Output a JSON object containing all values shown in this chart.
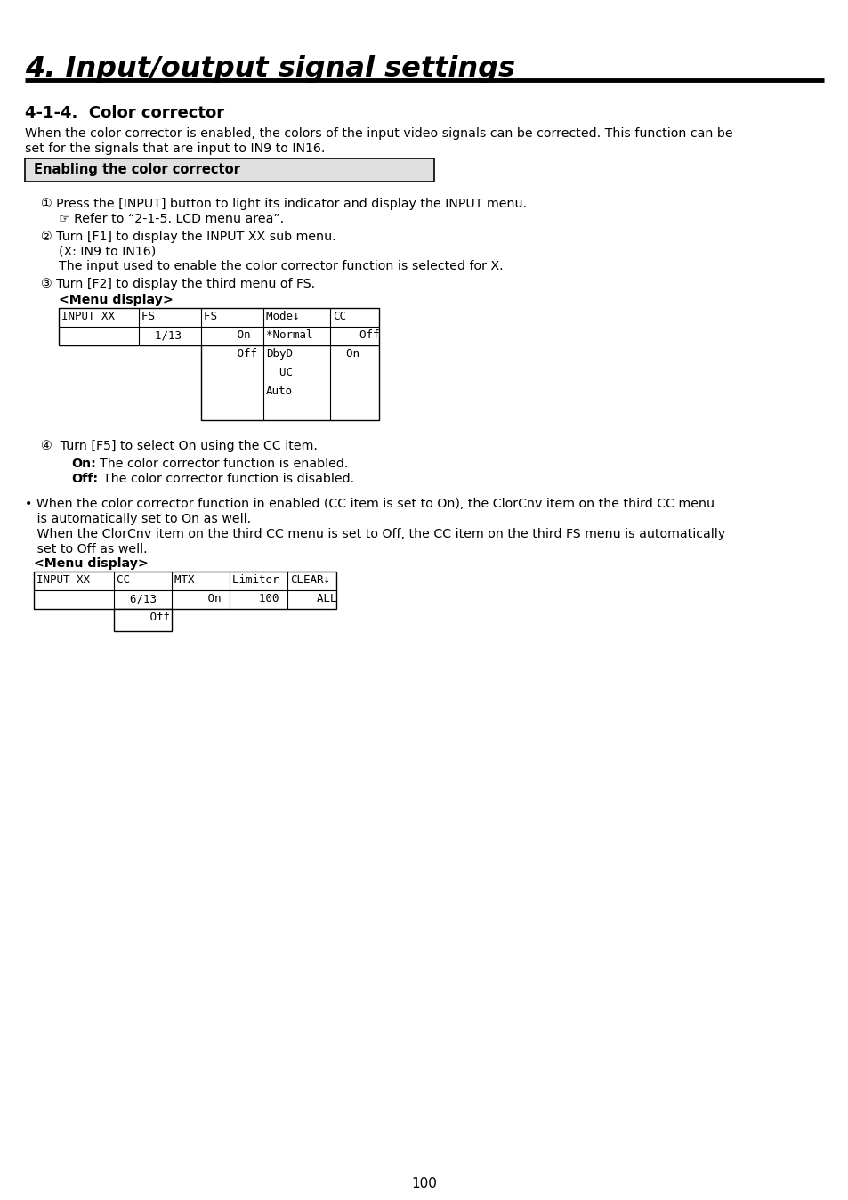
{
  "page_bg": "#ffffff",
  "page_num": "100",
  "chapter_title": "4. Input/output signal settings",
  "section_title": "4-1-4.  Color corrector",
  "intro_line1": "When the color corrector is enabled, the colors of the input video signals can be corrected. This function can be",
  "intro_line2": "set for the signals that are input to IN9 to IN16.",
  "box_label": "Enabling the color corrector",
  "step1_main": "① Press the [INPUT] button to light its indicator and display the INPUT menu.",
  "step1_sub": "☞ Refer to “2-1-5. LCD menu area”.",
  "step2_main": "② Turn [F1] to display the INPUT XX sub menu.",
  "step2_sub1": "(X: IN9 to IN16)",
  "step2_sub2": "The input used to enable the color corrector function is selected for X.",
  "step3_main": "③ Turn [F2] to display the third menu of FS.",
  "menu_display_label": "<Menu display>",
  "step4_main": "④  Turn [F5] to select On using the CC item.",
  "step4_on_label": "On:",
  "step4_on_text": "  The color corrector function is enabled.",
  "step4_off_label": "Off:",
  "step4_off_text": "  The color corrector function is disabled.",
  "bullet_line1": "• When the color corrector function in enabled (CC item is set to On), the ClorCnv item on the third CC menu",
  "bullet_line2": "   is automatically set to On as well.",
  "bullet_line3": "   When the ClorCnv item on the third CC menu is set to Off, the CC item on the third FS menu is automatically",
  "bullet_line4": "   set to Off as well.",
  "menu_display_label2": "<Menu display>"
}
